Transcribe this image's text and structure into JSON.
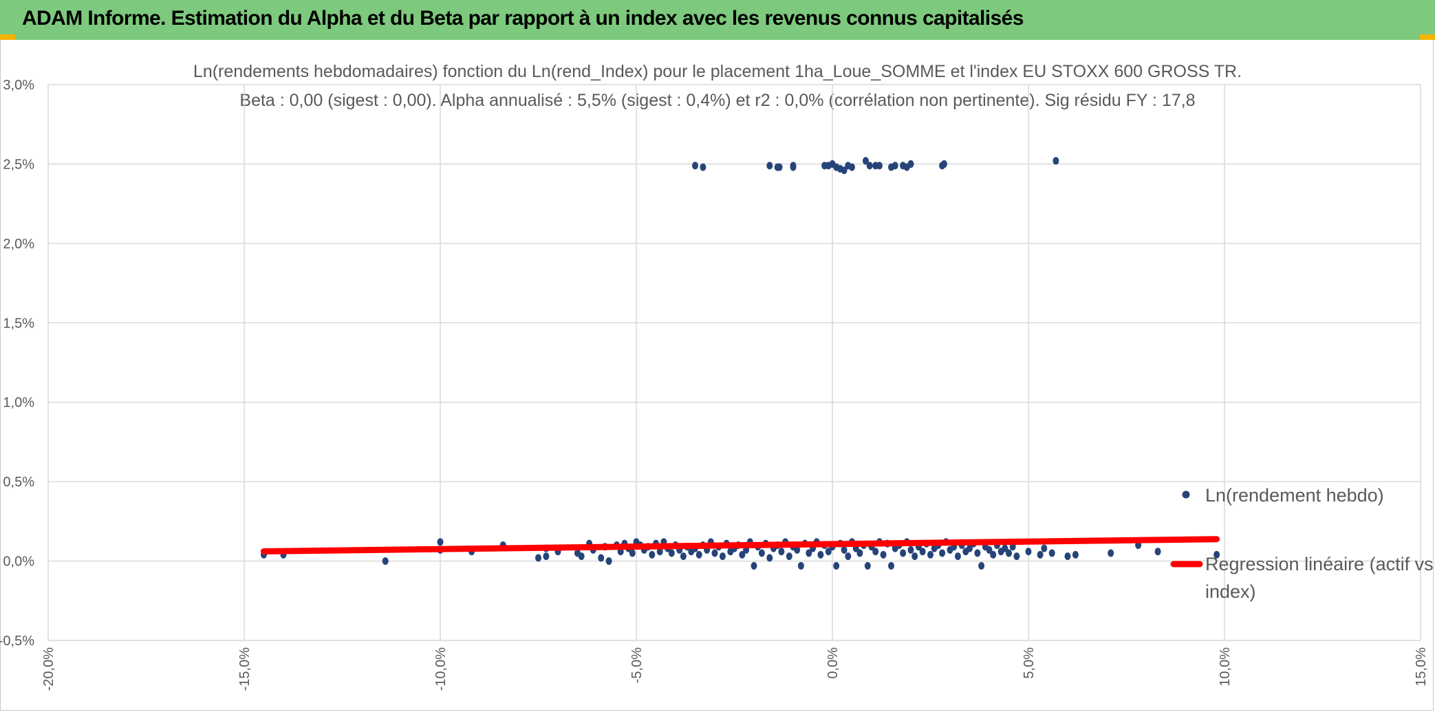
{
  "banner": {
    "title": "ADAM Informe. Estimation du Alpha et du Beta par rapport à un index avec les revenus connus capitalisés",
    "color": "#7dc97d",
    "accent": "#f5b400"
  },
  "chart_data": {
    "type": "scatter",
    "title_line1": "Ln(rendements hebdomadaires) fonction du Ln(rend_Index) pour le placement 1ha_Loue_SOMME et l'index EU STOXX 600 GROSS TR.",
    "title_line2": "Beta : 0,00 (sigest : 0,00). Alpha annualisé : 5,5% (sigest : 0,4%) et r2 : 0,0% (corrélation non pertinente). Sig résidu FY : 17,8",
    "xlim": [
      -20,
      15
    ],
    "ylim": [
      -0.5,
      3.0
    ],
    "x_ticks": [
      "-20,0%",
      "-15,0%",
      "-10,0%",
      "-5,0%",
      "0,0%",
      "5,0%",
      "10,0%",
      "15,0%"
    ],
    "y_ticks": [
      "3,0%",
      "2,5%",
      "2,0%",
      "1,5%",
      "1,0%",
      "0,5%",
      "0,0%",
      "-0,5%"
    ],
    "grid": true,
    "legend_position": "right",
    "series": [
      {
        "name": "Ln(rendement hebdo)",
        "color": "#264478",
        "marker": "circle",
        "points": [
          [
            -3.5,
            2.49
          ],
          [
            -3.3,
            2.48
          ],
          [
            -1.6,
            2.49
          ],
          [
            -1.4,
            2.48
          ],
          [
            -1.35,
            2.48
          ],
          [
            -1.0,
            2.49
          ],
          [
            -1.0,
            2.48
          ],
          [
            -0.2,
            2.49
          ],
          [
            -0.1,
            2.49
          ],
          [
            0.0,
            2.5
          ],
          [
            0.1,
            2.48
          ],
          [
            0.2,
            2.47
          ],
          [
            0.3,
            2.46
          ],
          [
            0.4,
            2.49
          ],
          [
            0.5,
            2.48
          ],
          [
            0.85,
            2.52
          ],
          [
            0.95,
            2.49
          ],
          [
            1.1,
            2.49
          ],
          [
            1.2,
            2.49
          ],
          [
            1.5,
            2.48
          ],
          [
            1.6,
            2.49
          ],
          [
            1.8,
            2.49
          ],
          [
            1.9,
            2.48
          ],
          [
            2.0,
            2.5
          ],
          [
            2.8,
            2.49
          ],
          [
            2.85,
            2.5
          ],
          [
            5.7,
            2.52
          ],
          [
            -14.5,
            0.04
          ],
          [
            -14.0,
            0.04
          ],
          [
            -11.4,
            0.0
          ],
          [
            -10.0,
            0.12
          ],
          [
            -10.0,
            0.07
          ],
          [
            -9.2,
            0.06
          ],
          [
            -8.4,
            0.1
          ],
          [
            -8.4,
            0.09
          ],
          [
            -7.5,
            0.02
          ],
          [
            -7.3,
            0.08
          ],
          [
            -7.3,
            0.03
          ],
          [
            -7.0,
            0.06
          ],
          [
            -6.5,
            0.05
          ],
          [
            -6.4,
            0.03
          ],
          [
            -6.2,
            0.11
          ],
          [
            -6.1,
            0.07
          ],
          [
            -5.9,
            0.02
          ],
          [
            -5.8,
            0.09
          ],
          [
            -5.7,
            0.0
          ],
          [
            -5.5,
            0.1
          ],
          [
            -5.4,
            0.06
          ],
          [
            -5.3,
            0.11
          ],
          [
            -5.2,
            0.08
          ],
          [
            -5.1,
            0.05
          ],
          [
            -5.0,
            0.12
          ],
          [
            -4.9,
            0.1
          ],
          [
            -4.8,
            0.07
          ],
          [
            -4.7,
            0.09
          ],
          [
            -4.6,
            0.04
          ],
          [
            -4.5,
            0.11
          ],
          [
            -4.4,
            0.06
          ],
          [
            -4.3,
            0.12
          ],
          [
            -4.2,
            0.08
          ],
          [
            -4.1,
            0.05
          ],
          [
            -4.0,
            0.1
          ],
          [
            -3.9,
            0.07
          ],
          [
            -3.8,
            0.03
          ],
          [
            -3.7,
            0.09
          ],
          [
            -3.6,
            0.06
          ],
          [
            -3.5,
            0.08
          ],
          [
            -3.4,
            0.04
          ],
          [
            -3.3,
            0.1
          ],
          [
            -3.2,
            0.07
          ],
          [
            -3.1,
            0.12
          ],
          [
            -3.0,
            0.05
          ],
          [
            -2.9,
            0.09
          ],
          [
            -2.8,
            0.03
          ],
          [
            -2.7,
            0.11
          ],
          [
            -2.6,
            0.06
          ],
          [
            -2.5,
            0.08
          ],
          [
            -2.4,
            0.1
          ],
          [
            -2.3,
            0.04
          ],
          [
            -2.2,
            0.07
          ],
          [
            -2.1,
            0.12
          ],
          [
            -2.0,
            -0.03
          ],
          [
            -1.9,
            0.09
          ],
          [
            -1.8,
            0.05
          ],
          [
            -1.7,
            0.11
          ],
          [
            -1.6,
            0.02
          ],
          [
            -1.5,
            0.08
          ],
          [
            -1.4,
            0.1
          ],
          [
            -1.3,
            0.06
          ],
          [
            -1.2,
            0.12
          ],
          [
            -1.1,
            0.03
          ],
          [
            -1.0,
            0.09
          ],
          [
            -0.9,
            0.07
          ],
          [
            -0.8,
            -0.03
          ],
          [
            -0.7,
            0.11
          ],
          [
            -0.6,
            0.05
          ],
          [
            -0.5,
            0.08
          ],
          [
            -0.4,
            0.12
          ],
          [
            -0.3,
            0.04
          ],
          [
            -0.2,
            0.1
          ],
          [
            -0.1,
            0.06
          ],
          [
            0.0,
            0.09
          ],
          [
            0.1,
            -0.03
          ],
          [
            0.2,
            0.11
          ],
          [
            0.3,
            0.07
          ],
          [
            0.4,
            0.03
          ],
          [
            0.5,
            0.12
          ],
          [
            0.6,
            0.08
          ],
          [
            0.7,
            0.05
          ],
          [
            0.8,
            0.1
          ],
          [
            0.9,
            -0.03
          ],
          [
            1.0,
            0.09
          ],
          [
            1.1,
            0.06
          ],
          [
            1.2,
            0.12
          ],
          [
            1.3,
            0.04
          ],
          [
            1.4,
            0.11
          ],
          [
            1.5,
            -0.03
          ],
          [
            1.6,
            0.08
          ],
          [
            1.7,
            0.1
          ],
          [
            1.8,
            0.05
          ],
          [
            1.9,
            0.12
          ],
          [
            2.0,
            0.07
          ],
          [
            2.1,
            0.03
          ],
          [
            2.2,
            0.09
          ],
          [
            2.3,
            0.06
          ],
          [
            2.4,
            0.11
          ],
          [
            2.5,
            0.04
          ],
          [
            2.6,
            0.08
          ],
          [
            2.7,
            0.1
          ],
          [
            2.8,
            0.05
          ],
          [
            2.9,
            0.12
          ],
          [
            3.0,
            0.07
          ],
          [
            3.1,
            0.09
          ],
          [
            3.2,
            0.03
          ],
          [
            3.3,
            0.1
          ],
          [
            3.4,
            0.06
          ],
          [
            3.5,
            0.08
          ],
          [
            3.6,
            0.11
          ],
          [
            3.7,
            0.05
          ],
          [
            3.8,
            -0.03
          ],
          [
            3.9,
            0.09
          ],
          [
            4.0,
            0.07
          ],
          [
            4.1,
            0.04
          ],
          [
            4.2,
            0.1
          ],
          [
            4.3,
            0.06
          ],
          [
            4.4,
            0.08
          ],
          [
            4.5,
            0.05
          ],
          [
            4.6,
            0.09
          ],
          [
            4.7,
            0.03
          ],
          [
            5.0,
            0.06
          ],
          [
            5.3,
            0.04
          ],
          [
            5.4,
            0.08
          ],
          [
            5.6,
            0.05
          ],
          [
            6.0,
            0.03
          ],
          [
            6.2,
            0.04
          ],
          [
            7.1,
            0.05
          ],
          [
            7.8,
            0.1
          ],
          [
            8.3,
            0.06
          ],
          [
            9.8,
            0.04
          ]
        ]
      },
      {
        "name": "Regression linéaire (actif vs index)",
        "color": "#ff0000",
        "type": "line",
        "x": [
          -14.5,
          9.8
        ],
        "y": [
          0.061,
          0.138
        ]
      }
    ]
  }
}
